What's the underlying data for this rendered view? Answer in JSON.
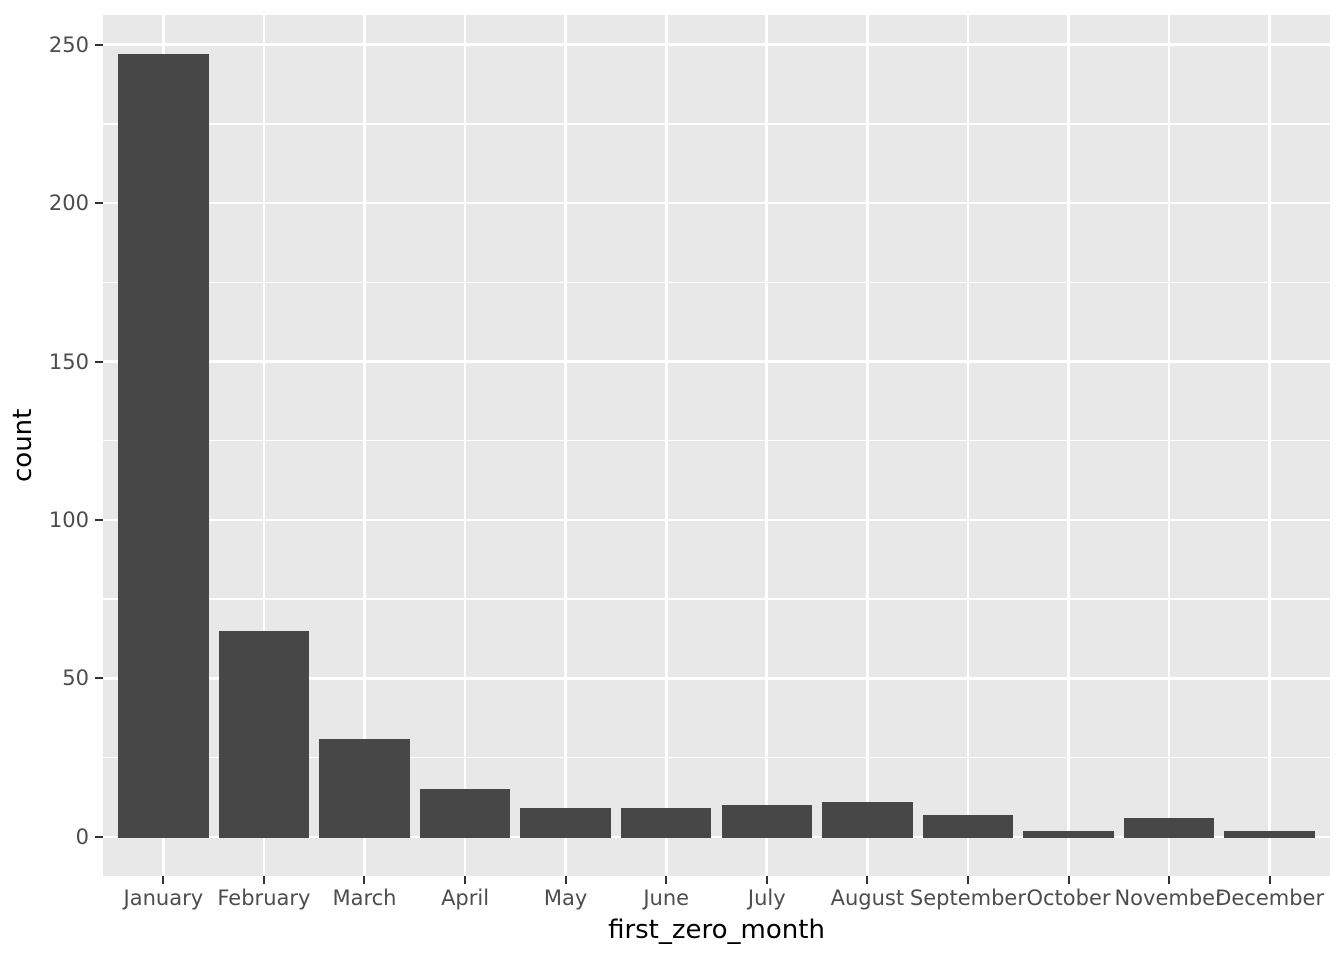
{
  "chart_data": {
    "type": "bar",
    "title": "",
    "xlabel": "first_zero_month",
    "ylabel": "count",
    "categories": [
      "January",
      "February",
      "March",
      "April",
      "May",
      "June",
      "July",
      "August",
      "September",
      "October",
      "November",
      "December"
    ],
    "values": [
      247,
      65,
      31,
      15,
      9,
      9,
      10,
      11,
      7,
      2,
      6,
      2
    ],
    "y_major_ticks": [
      0,
      50,
      100,
      150,
      200,
      250
    ],
    "y_minor_gridlines": [
      25,
      75,
      125,
      175,
      225
    ],
    "ylim": [
      -12.35,
      259.35
    ],
    "bar_width_fraction": 0.9,
    "grid": "major_and_minor",
    "legend": "none",
    "style": "ggplot2",
    "colors": {
      "bar": "#474747",
      "panel_background": "#E8E8E8",
      "gridline": "#FFFFFF",
      "tick_label": "#4D4D4D",
      "axis_title": "#000000",
      "tick_mark": "#333333",
      "figure_background": "#FFFFFF"
    }
  }
}
